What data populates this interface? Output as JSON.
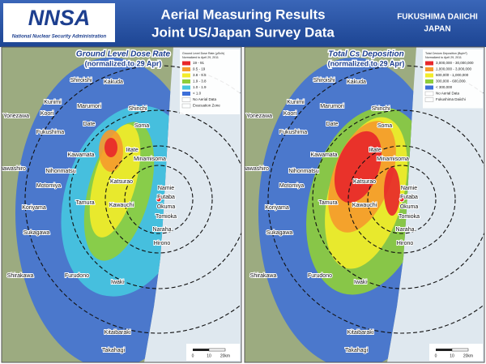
{
  "header": {
    "logo": "NNSA",
    "agency": "National Nuclear Security Administration",
    "title_line1": "Aerial Measuring Results",
    "title_line2": "Joint US/Japan Survey Data",
    "site_line1": "FUKUSHIMA DAIICHI",
    "site_line2": "JAPAN"
  },
  "panels": [
    {
      "title": "Ground Level Dose Rate",
      "subtitle": "(normalized to 29 Apr)",
      "legend": {
        "title": "Ground Level Dose Rate (µSv/h)",
        "note": "Normalized to April 29, 2011",
        "entries": [
          {
            "label": "19 - 91",
            "color": "#e8262a"
          },
          {
            "label": "9.5 - 19",
            "color": "#f59a2c"
          },
          {
            "label": "3.8 - 9.5",
            "color": "#f3ec2a"
          },
          {
            "label": "1.9 - 3.8",
            "color": "#8fce3a"
          },
          {
            "label": "1.0 - 1.9",
            "color": "#46c7e0"
          },
          {
            "label": "< 1.0",
            "color": "#3d6fd9"
          }
        ],
        "extras": [
          "No Aerial Data",
          "Evacuation Zone"
        ]
      },
      "towns": [
        "Shiroishi",
        "Kakuda",
        "Kunimi",
        "Koori",
        "Marumori",
        "Shinchi",
        "Yonezawa",
        "Date",
        "Soma",
        "Fukushima",
        "Iitate",
        "Kawamata",
        "Minamisoma",
        "Inawashiro",
        "Nihonmatsu",
        "Katsurao",
        "Namie",
        "Motomiya",
        "Futaba",
        "Okuma",
        "Koriyama",
        "Tamura",
        "Kawauchi",
        "Tomioka",
        "Naraha",
        "Sukagawa",
        "Hirono",
        "Shirakawa",
        "Furudono",
        "Iwaki",
        "Kitaibaraki",
        "Takahagi"
      ],
      "scale": [
        "0",
        "10",
        "20km"
      ]
    },
    {
      "title": "Total Cs Deposition",
      "subtitle": "(normalized to 29 Apr)",
      "legend": {
        "title": "Total Cesium Deposition (Bq/m²)",
        "note": "Normalized to April 29, 2011",
        "entries": [
          {
            "label": "3,000,000 - 30,000,000",
            "color": "#e8262a"
          },
          {
            "label": "1,000,000 - 3,000,000",
            "color": "#f59a2c"
          },
          {
            "label": "600,000 - 1,000,000",
            "color": "#f3ec2a"
          },
          {
            "label": "300,000 - 600,000",
            "color": "#8fce3a"
          },
          {
            "label": "< 300,000",
            "color": "#3d6fd9"
          }
        ],
        "extras": [
          "No Aerial Data",
          "Fukushima Daiichi"
        ]
      },
      "towns": [
        "Shiroishi",
        "Kakuda",
        "Kunimi",
        "Koori",
        "Marumori",
        "Shinchi",
        "Yonezawa",
        "Date",
        "Soma",
        "Fukushima",
        "Iitate",
        "Kawamata",
        "Minamisoma",
        "Inawashiro",
        "Nihonmatsu",
        "Katsurao",
        "Namie",
        "Motomiya",
        "Futaba",
        "Okuma",
        "Koriyama",
        "Tamura",
        "Kawauchi",
        "Tomioka",
        "Naraha",
        "Sukagawa",
        "Hirono",
        "Shirakawa",
        "Furudono",
        "Iwaki",
        "Kitaibaraki",
        "Takahagi"
      ],
      "scale": [
        "0",
        "10",
        "20km"
      ]
    }
  ]
}
